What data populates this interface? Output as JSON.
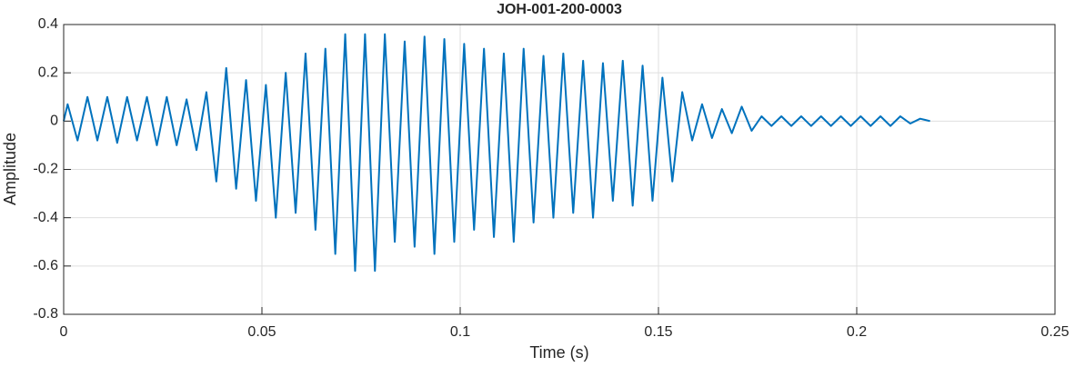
{
  "chart_data": {
    "type": "line",
    "title": "JOH-001-200-0003",
    "x_label": "Time (s)",
    "y_label": "Amplitude",
    "x": [
      0,
      0.001,
      0.0035,
      0.006,
      0.0085,
      0.011,
      0.0135,
      0.016,
      0.0185,
      0.021,
      0.0235,
      0.026,
      0.0285,
      0.031,
      0.0335,
      0.036,
      0.0385,
      0.041,
      0.0435,
      0.046,
      0.0485,
      0.051,
      0.0535,
      0.056,
      0.0585,
      0.061,
      0.0635,
      0.066,
      0.0685,
      0.071,
      0.0735,
      0.076,
      0.0785,
      0.081,
      0.0835,
      0.086,
      0.0885,
      0.091,
      0.0935,
      0.096,
      0.0985,
      0.101,
      0.1035,
      0.106,
      0.1085,
      0.111,
      0.1135,
      0.116,
      0.1185,
      0.121,
      0.1235,
      0.126,
      0.1285,
      0.131,
      0.1335,
      0.136,
      0.1385,
      0.141,
      0.1435,
      0.146,
      0.1485,
      0.151,
      0.1535,
      0.156,
      0.1585,
      0.161,
      0.1635,
      0.166,
      0.1685,
      0.171,
      0.1735,
      0.176,
      0.1785,
      0.181,
      0.1835,
      0.186,
      0.1885,
      0.191,
      0.1935,
      0.196,
      0.1985,
      0.201,
      0.2035,
      0.206,
      0.2085,
      0.211,
      0.2135,
      0.216,
      0.2185
    ],
    "series": [
      {
        "color": "#0072bd",
        "values": [
          0,
          0.07,
          -0.08,
          0.1,
          -0.08,
          0.1,
          -0.09,
          0.1,
          -0.08,
          0.1,
          -0.1,
          0.1,
          -0.1,
          0.09,
          -0.12,
          0.12,
          -0.25,
          0.22,
          -0.28,
          0.17,
          -0.33,
          0.15,
          -0.4,
          0.2,
          -0.38,
          0.28,
          -0.45,
          0.3,
          -0.55,
          0.36,
          -0.62,
          0.36,
          -0.62,
          0.36,
          -0.5,
          0.33,
          -0.52,
          0.35,
          -0.55,
          0.34,
          -0.5,
          0.32,
          -0.45,
          0.3,
          -0.48,
          0.28,
          -0.5,
          0.3,
          -0.42,
          0.27,
          -0.4,
          0.28,
          -0.38,
          0.25,
          -0.4,
          0.24,
          -0.33,
          0.25,
          -0.35,
          0.23,
          -0.33,
          0.18,
          -0.25,
          0.12,
          -0.08,
          0.07,
          -0.07,
          0.05,
          -0.05,
          0.06,
          -0.04,
          0.02,
          -0.02,
          0.02,
          -0.02,
          0.02,
          -0.02,
          0.02,
          -0.02,
          0.02,
          -0.02,
          0.02,
          -0.02,
          0.02,
          -0.02,
          0.02,
          -0.01,
          0.01,
          0
        ]
      }
    ],
    "xlim": [
      0,
      0.25
    ],
    "xticks": [
      0,
      0.05,
      0.1,
      0.15,
      0.2,
      0.25
    ],
    "ylim": [
      -0.8,
      0.4
    ],
    "yticks": [
      -0.8,
      -0.6,
      -0.4,
      -0.2,
      0,
      0.2,
      0.4
    ],
    "grid": true
  }
}
